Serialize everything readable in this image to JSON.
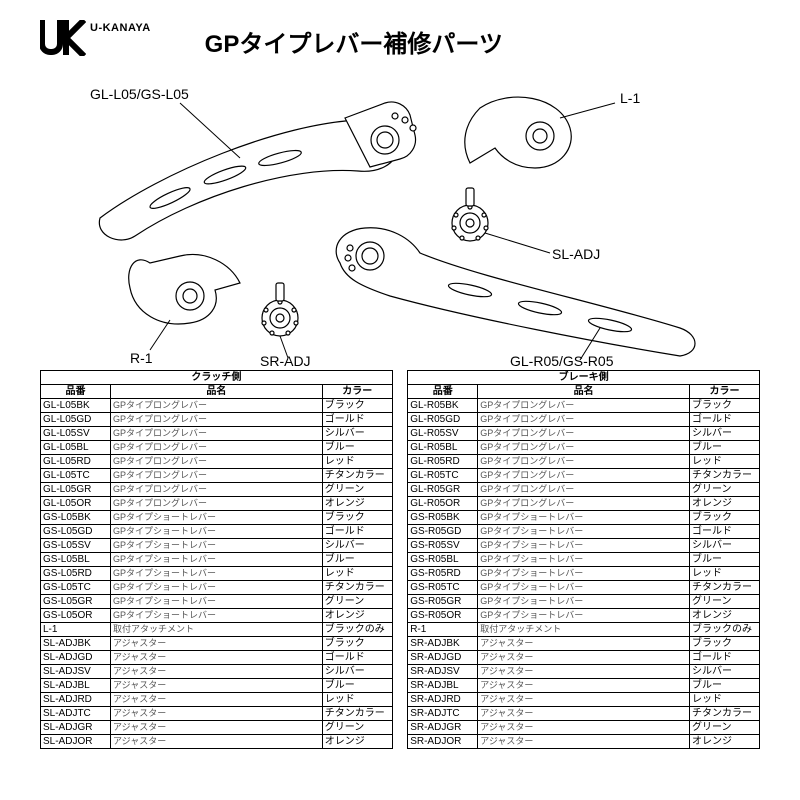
{
  "brand": "U-KANAYA",
  "title": "GPタイプレバー補修パーツ",
  "diagram_labels": {
    "top_left": "GL-L05/GS-L05",
    "top_right": "L-1",
    "mid_right": "SL-ADJ",
    "bottom_left": "R-1",
    "bottom_mid": "SR-ADJ",
    "bottom_right": "GL-R05/GS-R05"
  },
  "tables": [
    {
      "group": "クラッチ側",
      "headers": [
        "品番",
        "品名",
        "カラー"
      ],
      "rows": [
        [
          "GL-L05BK",
          "GPタイプロングレバー",
          "ブラック"
        ],
        [
          "GL-L05GD",
          "GPタイプロングレバー",
          "ゴールド"
        ],
        [
          "GL-L05SV",
          "GPタイプロングレバー",
          "シルバー"
        ],
        [
          "GL-L05BL",
          "GPタイプロングレバー",
          "ブルー"
        ],
        [
          "GL-L05RD",
          "GPタイプロングレバー",
          "レッド"
        ],
        [
          "GL-L05TC",
          "GPタイプロングレバー",
          "チタンカラー"
        ],
        [
          "GL-L05GR",
          "GPタイプロングレバー",
          "グリーン"
        ],
        [
          "GL-L05OR",
          "GPタイプロングレバー",
          "オレンジ"
        ],
        [
          "GS-L05BK",
          "GPタイプショートレバー",
          "ブラック"
        ],
        [
          "GS-L05GD",
          "GPタイプショートレバー",
          "ゴールド"
        ],
        [
          "GS-L05SV",
          "GPタイプショートレバー",
          "シルバー"
        ],
        [
          "GS-L05BL",
          "GPタイプショートレバー",
          "ブルー"
        ],
        [
          "GS-L05RD",
          "GPタイプショートレバー",
          "レッド"
        ],
        [
          "GS-L05TC",
          "GPタイプショートレバー",
          "チタンカラー"
        ],
        [
          "GS-L05GR",
          "GPタイプショートレバー",
          "グリーン"
        ],
        [
          "GS-L05OR",
          "GPタイプショートレバー",
          "オレンジ"
        ],
        [
          "L-1",
          "取付アタッチメント",
          "ブラックのみ"
        ],
        [
          "SL-ADJBK",
          "アジャスター",
          "ブラック"
        ],
        [
          "SL-ADJGD",
          "アジャスター",
          "ゴールド"
        ],
        [
          "SL-ADJSV",
          "アジャスター",
          "シルバー"
        ],
        [
          "SL-ADJBL",
          "アジャスター",
          "ブルー"
        ],
        [
          "SL-ADJRD",
          "アジャスター",
          "レッド"
        ],
        [
          "SL-ADJTC",
          "アジャスター",
          "チタンカラー"
        ],
        [
          "SL-ADJGR",
          "アジャスター",
          "グリーン"
        ],
        [
          "SL-ADJOR",
          "アジャスター",
          "オレンジ"
        ]
      ]
    },
    {
      "group": "ブレーキ側",
      "headers": [
        "品番",
        "品名",
        "カラー"
      ],
      "rows": [
        [
          "GL-R05BK",
          "GPタイプロングレバー",
          "ブラック"
        ],
        [
          "GL-R05GD",
          "GPタイプロングレバー",
          "ゴールド"
        ],
        [
          "GL-R05SV",
          "GPタイプロングレバー",
          "シルバー"
        ],
        [
          "GL-R05BL",
          "GPタイプロングレバー",
          "ブルー"
        ],
        [
          "GL-R05RD",
          "GPタイプロングレバー",
          "レッド"
        ],
        [
          "GL-R05TC",
          "GPタイプロングレバー",
          "チタンカラー"
        ],
        [
          "GL-R05GR",
          "GPタイプロングレバー",
          "グリーン"
        ],
        [
          "GL-R05OR",
          "GPタイプロングレバー",
          "オレンジ"
        ],
        [
          "GS-R05BK",
          "GPタイプショートレバー",
          "ブラック"
        ],
        [
          "GS-R05GD",
          "GPタイプショートレバー",
          "ゴールド"
        ],
        [
          "GS-R05SV",
          "GPタイプショートレバー",
          "シルバー"
        ],
        [
          "GS-R05BL",
          "GPタイプショートレバー",
          "ブルー"
        ],
        [
          "GS-R05RD",
          "GPタイプショートレバー",
          "レッド"
        ],
        [
          "GS-R05TC",
          "GPタイプショートレバー",
          "チタンカラー"
        ],
        [
          "GS-R05GR",
          "GPタイプショートレバー",
          "グリーン"
        ],
        [
          "GS-R05OR",
          "GPタイプショートレバー",
          "オレンジ"
        ],
        [
          "R-1",
          "取付アタッチメント",
          "ブラックのみ"
        ],
        [
          "SR-ADJBK",
          "アジャスター",
          "ブラック"
        ],
        [
          "SR-ADJGD",
          "アジャスター",
          "ゴールド"
        ],
        [
          "SR-ADJSV",
          "アジャスター",
          "シルバー"
        ],
        [
          "SR-ADJBL",
          "アジャスター",
          "ブルー"
        ],
        [
          "SR-ADJRD",
          "アジャスター",
          "レッド"
        ],
        [
          "SR-ADJTC",
          "アジャスター",
          "チタンカラー"
        ],
        [
          "SR-ADJGR",
          "アジャスター",
          "グリーン"
        ],
        [
          "SR-ADJOR",
          "アジャスター",
          "オレンジ"
        ]
      ]
    }
  ],
  "style": {
    "border_color": "#000000",
    "text_color": "#000000",
    "secondary_text": "#555555",
    "font_size_table": 10,
    "font_size_title": 24
  }
}
